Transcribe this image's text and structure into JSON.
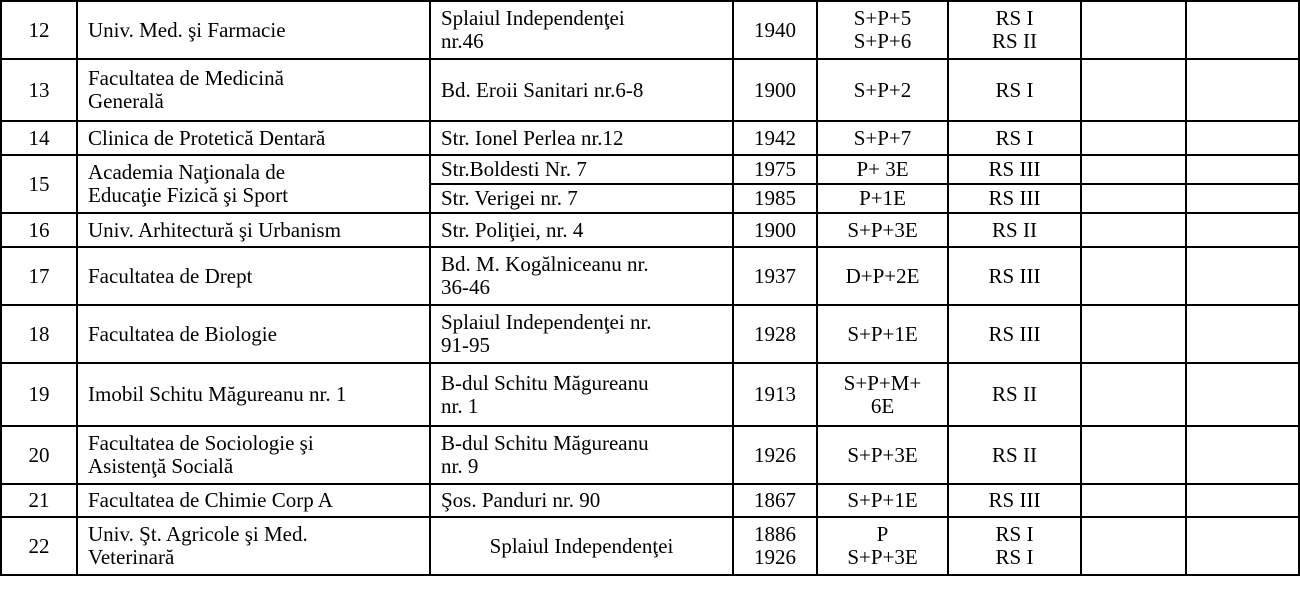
{
  "rows": [
    {
      "nr": "12",
      "name": [
        "Univ. Med. şi  Farmacie"
      ],
      "addr": [
        "Splaiul Independenţei",
        "nr.46"
      ],
      "year": [
        "1940"
      ],
      "reg": [
        "S+P+5",
        "S+P+6"
      ],
      "rs": [
        "RS I",
        "RS II"
      ]
    },
    {
      "nr": "13",
      "name": [
        "Facultatea de Medicină",
        "Generală"
      ],
      "addr": [
        "Bd. Eroii Sanitari nr.6-8"
      ],
      "year": [
        "1900"
      ],
      "reg": [
        "S+P+2"
      ],
      "rs": [
        "RS I"
      ]
    },
    {
      "nr": "14",
      "name": [
        "Clinica de Protetică Dentară"
      ],
      "addr": [
        "Str. Ionel Perlea nr.12"
      ],
      "year": [
        "1942"
      ],
      "reg": [
        "S+P+7"
      ],
      "rs": [
        "RS I"
      ]
    },
    {
      "nr": "15",
      "name": [
        "Academia Naţionala de",
        "Educaţie Fizică şi Sport"
      ],
      "sub": [
        {
          "addr": [
            "Str.Boldesti Nr. 7"
          ],
          "year": [
            "1975"
          ],
          "reg": [
            "P+ 3E"
          ],
          "rs": [
            "RS III"
          ]
        },
        {
          "addr": [
            "Str. Verigei nr. 7"
          ],
          "year": [
            "1985"
          ],
          "reg": [
            "P+1E"
          ],
          "rs": [
            "RS III"
          ]
        }
      ]
    },
    {
      "nr": "16",
      "name": [
        "Univ. Arhitectură şi Urbanism"
      ],
      "addr": [
        "Str. Poliţiei, nr. 4"
      ],
      "year": [
        "1900"
      ],
      "reg": [
        "S+P+3E"
      ],
      "rs": [
        "RS II"
      ]
    },
    {
      "nr": "17",
      "name": [
        "Facultatea de Drept"
      ],
      "addr": [
        "Bd. M. Kogălniceanu nr.",
        "36-46"
      ],
      "year": [
        "1937"
      ],
      "reg": [
        "D+P+2E"
      ],
      "rs": [
        "RS III"
      ]
    },
    {
      "nr": "18",
      "name": [
        "Facultatea de Biologie"
      ],
      "addr": [
        "Splaiul Independenţei nr.",
        "91-95"
      ],
      "year": [
        "1928"
      ],
      "reg": [
        "S+P+1E"
      ],
      "rs": [
        "RS III"
      ]
    },
    {
      "nr": "19",
      "name": [
        "Imobil Schitu Măgureanu nr. 1"
      ],
      "addr": [
        "B-dul Schitu Măgureanu",
        "nr. 1"
      ],
      "year": [
        "1913"
      ],
      "reg": [
        "S+P+M+",
        "6E"
      ],
      "rs": [
        "RS II"
      ]
    },
    {
      "nr": "20",
      "name": [
        "Facultatea de Sociologie şi",
        "Asistenţă Socială"
      ],
      "addr": [
        "B-dul Schitu Măgureanu",
        "nr. 9"
      ],
      "year": [
        "1926"
      ],
      "reg": [
        "S+P+3E"
      ],
      "rs": [
        "RS II"
      ]
    },
    {
      "nr": "21",
      "name": [
        "Facultatea de Chimie Corp A"
      ],
      "addr": [
        "Şos. Panduri nr. 90"
      ],
      "year": [
        "1867"
      ],
      "reg": [
        "S+P+1E"
      ],
      "rs": [
        "RS III"
      ]
    },
    {
      "nr": "22",
      "name": [
        "Univ. Şt. Agricole şi Med.",
        "Veterinară"
      ],
      "addr": [
        "Splaiul Independenţei"
      ],
      "addr_center": true,
      "year": [
        "1886",
        "1926"
      ],
      "reg": [
        "P",
        "S+P+3E"
      ],
      "rs": [
        "RS I",
        "RS I"
      ]
    }
  ]
}
